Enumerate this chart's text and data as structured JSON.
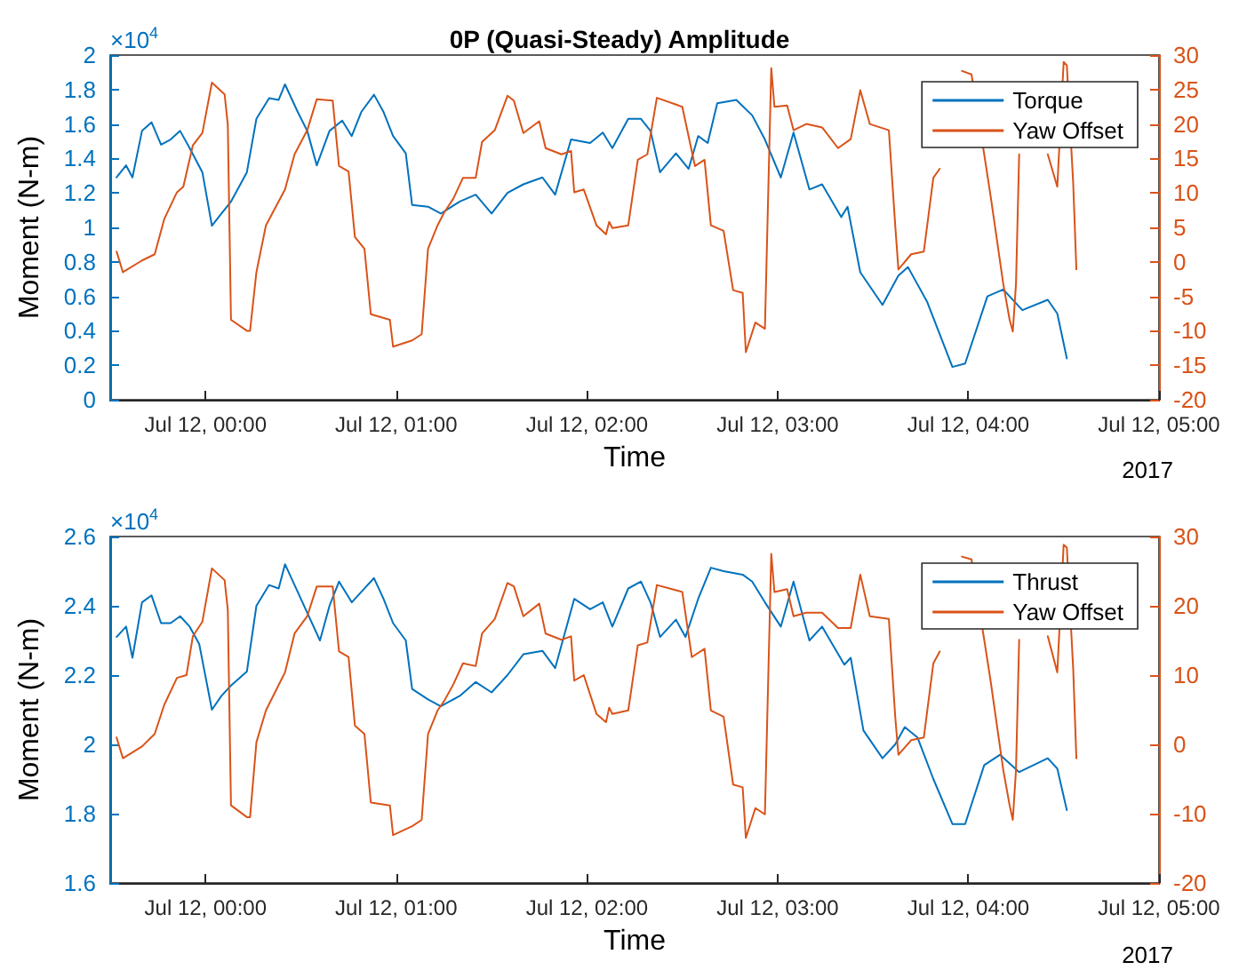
{
  "chart_data": [
    {
      "type": "line",
      "title": "0P (Quasi-Steady) Amplitude",
      "xlabel": "Time",
      "ylabel": "Moment (N-m)",
      "annotations": [
        "×10$^{4}$",
        "2017"
      ],
      "xlim": [
        "2017-07-11T23:30",
        "2017-07-12T05:00"
      ],
      "xticks": [
        {
          "value": "2017-07-12T00:00",
          "label": "Jul 12, 00:00"
        },
        {
          "value": "2017-07-12T01:00",
          "label": "Jul 12, 01:00"
        },
        {
          "value": "2017-07-12T02:00",
          "label": "Jul 12, 02:00"
        },
        {
          "value": "2017-07-12T03:00",
          "label": "Jul 12, 03:00"
        },
        {
          "value": "2017-07-12T04:00",
          "label": "Jul 12, 04:00"
        },
        {
          "value": "2017-07-12T05:00",
          "label": "Jul 12, 05:00"
        }
      ],
      "ylim": [
        0,
        2
      ],
      "yticks": [
        0,
        0.2,
        0.4,
        0.6,
        0.8,
        1,
        1.2,
        1.4,
        1.6,
        1.8,
        2
      ],
      "y2lim": [
        -20,
        30
      ],
      "y2ticks": [
        -20,
        -15,
        -10,
        -5,
        0,
        5,
        10,
        15,
        20,
        25,
        30
      ],
      "grid": false,
      "legend": "top right",
      "marker": "none",
      "line_style": "solid",
      "series": [
        {
          "name": "Torque",
          "color": "#0072bd",
          "x": [
            "2017-07-11T23:32",
            "2017-07-11T23:35",
            "2017-07-11T23:37",
            "2017-07-11T23:40",
            "2017-07-11T23:43",
            "2017-07-11T23:46",
            "2017-07-11T23:49",
            "2017-07-11T23:52",
            "2017-07-11T23:55",
            "2017-07-11T23:59",
            "2017-07-12T00:02",
            "2017-07-12T00:05",
            "2017-07-12T00:08",
            "2017-07-12T00:13",
            "2017-07-12T00:16",
            "2017-07-12T00:20",
            "2017-07-12T00:23",
            "2017-07-12T00:25",
            "2017-07-12T00:29",
            "2017-07-12T00:32",
            "2017-07-12T00:35",
            "2017-07-12T00:39",
            "2017-07-12T00:43",
            "2017-07-12T00:46",
            "2017-07-12T00:49",
            "2017-07-12T00:53",
            "2017-07-12T00:56",
            "2017-07-12T00:59",
            "2017-07-12T01:03",
            "2017-07-12T01:05",
            "2017-07-12T01:10",
            "2017-07-12T01:14",
            "2017-07-12T01:20",
            "2017-07-12T01:25",
            "2017-07-12T01:30",
            "2017-07-12T01:35",
            "2017-07-12T01:40",
            "2017-07-12T01:46",
            "2017-07-12T01:50",
            "2017-07-12T01:55",
            "2017-07-12T02:01",
            "2017-07-12T02:05",
            "2017-07-12T02:08",
            "2017-07-12T02:13",
            "2017-07-12T02:17",
            "2017-07-12T02:20",
            "2017-07-12T02:23",
            "2017-07-12T02:28",
            "2017-07-12T02:32",
            "2017-07-12T02:35",
            "2017-07-12T02:38",
            "2017-07-12T02:41",
            "2017-07-12T02:47",
            "2017-07-12T02:52",
            "2017-07-12T02:56",
            "2017-07-12T03:01",
            "2017-07-12T03:05",
            "2017-07-12T03:10",
            "2017-07-12T03:14",
            "2017-07-12T03:20",
            "2017-07-12T03:22",
            "2017-07-12T03:26",
            "2017-07-12T03:33",
            "2017-07-12T03:38",
            "2017-07-12T03:41",
            "2017-07-12T03:47",
            "2017-07-12T03:55",
            "2017-07-12T03:59",
            "2017-07-12T04:06",
            "2017-07-12T04:11",
            "2017-07-12T04:17",
            "2017-07-12T04:25",
            "2017-07-12T04:28",
            "2017-07-12T04:31"
          ],
          "values": [
            1.29,
            1.36,
            1.29,
            1.56,
            1.61,
            1.48,
            1.51,
            1.56,
            1.46,
            1.32,
            1.01,
            1.08,
            1.15,
            1.32,
            1.63,
            1.75,
            1.74,
            1.83,
            1.67,
            1.56,
            1.36,
            1.56,
            1.62,
            1.53,
            1.67,
            1.77,
            1.67,
            1.53,
            1.43,
            1.13,
            1.12,
            1.08,
            1.15,
            1.19,
            1.08,
            1.2,
            1.25,
            1.29,
            1.19,
            1.51,
            1.49,
            1.55,
            1.46,
            1.63,
            1.63,
            1.56,
            1.32,
            1.43,
            1.34,
            1.53,
            1.49,
            1.72,
            1.74,
            1.65,
            1.51,
            1.29,
            1.55,
            1.22,
            1.25,
            1.06,
            1.12,
            0.74,
            0.55,
            0.72,
            0.77,
            0.57,
            0.19,
            0.21,
            0.6,
            0.64,
            0.52,
            0.58,
            0.5,
            0.24
          ]
        },
        {
          "name": "Yaw Offset",
          "color": "#d95319",
          "axis": "y2",
          "x": [
            "2017-07-11T23:32",
            "2017-07-11T23:34",
            "2017-07-11T23:40",
            "2017-07-11T23:44",
            "2017-07-11T23:47",
            "2017-07-11T23:51",
            "2017-07-11T23:53",
            "2017-07-11T23:56",
            "2017-07-11T23:59",
            "2017-07-12T00:02",
            "2017-07-12T00:06",
            "2017-07-12T00:07",
            "2017-07-12T00:08",
            "2017-07-12T00:13",
            "2017-07-12T00:14",
            "2017-07-12T00:16",
            "2017-07-12T00:19",
            "2017-07-12T00:25",
            "2017-07-12T00:28",
            "2017-07-12T00:32",
            "2017-07-12T00:35",
            "2017-07-12T00:40",
            "2017-07-12T00:42",
            "2017-07-12T00:45",
            "2017-07-12T00:47",
            "2017-07-12T00:50",
            "2017-07-12T00:52",
            "2017-07-12T00:58",
            "2017-07-12T00:59",
            "2017-07-12T01:05",
            "2017-07-12T01:08",
            "2017-07-12T01:10",
            "2017-07-12T01:13",
            "2017-07-12T01:15",
            "2017-07-12T01:18",
            "2017-07-12T01:21",
            "2017-07-12T01:25",
            "2017-07-12T01:27",
            "2017-07-12T01:31",
            "2017-07-12T01:35",
            "2017-07-12T01:37",
            "2017-07-12T01:40",
            "2017-07-12T01:45",
            "2017-07-12T01:47",
            "2017-07-12T01:52",
            "2017-07-12T01:55",
            "2017-07-12T01:56",
            "2017-07-12T01:59",
            "2017-07-12T02:03",
            "2017-07-12T02:06",
            "2017-07-12T02:07",
            "2017-07-12T02:08",
            "2017-07-12T02:13",
            "2017-07-12T02:16",
            "2017-07-12T02:19",
            "2017-07-12T02:22",
            "2017-07-12T02:30",
            "2017-07-12T02:34",
            "2017-07-12T02:37",
            "2017-07-12T02:39",
            "2017-07-12T02:43",
            "2017-07-12T02:46",
            "2017-07-12T02:49",
            "2017-07-12T02:50",
            "2017-07-12T02:53",
            "2017-07-12T02:56",
            "2017-07-12T02:58",
            "2017-07-12T02:59",
            "2017-07-12T03:03",
            "2017-07-12T03:05",
            "2017-07-12T03:09",
            "2017-07-12T03:14",
            "2017-07-12T03:19",
            "2017-07-12T03:23",
            "2017-07-12T03:26",
            "2017-07-12T03:29",
            "2017-07-12T03:35",
            "2017-07-12T03:37",
            "2017-07-12T03:38",
            "2017-07-12T03:42",
            "2017-07-12T03:46",
            "2017-07-12T03:49",
            "2017-07-12T03:51",
            "2017-07-12T03:53",
            "2017-07-12T03:58",
            "2017-07-12T04:01",
            "2017-07-12T04:05",
            "2017-07-12T04:07",
            "2017-07-12T04:11",
            "2017-07-12T04:13",
            "2017-07-12T04:14",
            "2017-07-12T04:15",
            "2017-07-12T04:16",
            "2017-07-12T04:20",
            "2017-07-12T04:25",
            "2017-07-12T04:28",
            "2017-07-12T04:30",
            "2017-07-12T04:31",
            "2017-07-12T04:33",
            "2017-07-12T04:34"
          ],
          "values": [
            1.5,
            -1.5,
            0.2,
            1.1,
            6.2,
            10.1,
            10.9,
            16.9,
            18.7,
            26,
            24.3,
            19.9,
            -8.4,
            -10,
            -10,
            -1.5,
            5.3,
            10.5,
            15.6,
            19.1,
            23.6,
            23.4,
            13.9,
            13.1,
            3.6,
            1.9,
            -7.6,
            -8.4,
            -12.3,
            -11.4,
            -10.5,
            1.9,
            5.3,
            7.1,
            9.2,
            12.2,
            12.2,
            17.4,
            19.1,
            24.1,
            23.4,
            18.7,
            20.4,
            16.5,
            15.6,
            16.1,
            10.1,
            10.5,
            5.3,
            4,
            5.8,
            4.9,
            5.3,
            14.8,
            15.6,
            23.8,
            22.5,
            13.9,
            14.8,
            5.3,
            4.5,
            -4.1,
            -4.5,
            -13.1,
            -8.8,
            -9.7,
            28.1,
            22.5,
            22.7,
            19.1,
            20,
            19.5,
            16.5,
            17.8,
            24.9,
            20,
            19.1,
            5.3,
            -1.1,
            1.1,
            1.5,
            12.2,
            13.5,
            null,
            27.7,
            27.2,
            15.6,
            9.6,
            -3.2,
            -8.4,
            -10.1,
            -3.2,
            15.6,
            null,
            15.6,
            10.9,
            29,
            28.5,
            11.4,
            -1.1
          ]
        }
      ]
    },
    {
      "type": "line",
      "xlabel": "Time",
      "ylabel": "Moment (N-m)",
      "annotations": [
        "×10$^{4}$",
        "2017"
      ],
      "xlim": [
        "2017-07-11T23:30",
        "2017-07-12T05:00"
      ],
      "xticks": [
        {
          "value": "2017-07-12T00:00",
          "label": "Jul 12, 00:00"
        },
        {
          "value": "2017-07-12T01:00",
          "label": "Jul 12, 01:00"
        },
        {
          "value": "2017-07-12T02:00",
          "label": "Jul 12, 02:00"
        },
        {
          "value": "2017-07-12T03:00",
          "label": "Jul 12, 03:00"
        },
        {
          "value": "2017-07-12T04:00",
          "label": "Jul 12, 04:00"
        },
        {
          "value": "2017-07-12T05:00",
          "label": "Jul 12, 05:00"
        }
      ],
      "ylim": [
        1.6,
        2.6
      ],
      "yticks": [
        1.6,
        1.8,
        2,
        2.2,
        2.4,
        2.6
      ],
      "y2lim": [
        -20,
        30
      ],
      "y2ticks": [
        -20,
        -10,
        0,
        10,
        20,
        30
      ],
      "grid": false,
      "legend": "top right",
      "marker": "none",
      "line_style": "solid",
      "series": [
        {
          "name": "Thrust",
          "color": "#0072bd",
          "x": [
            "2017-07-11T23:32",
            "2017-07-11T23:35",
            "2017-07-11T23:37",
            "2017-07-11T23:40",
            "2017-07-11T23:43",
            "2017-07-11T23:46",
            "2017-07-11T23:49",
            "2017-07-11T23:52",
            "2017-07-11T23:55",
            "2017-07-11T23:58",
            "2017-07-12T00:02",
            "2017-07-12T00:05",
            "2017-07-12T00:08",
            "2017-07-12T00:13",
            "2017-07-12T00:16",
            "2017-07-12T00:20",
            "2017-07-12T00:23",
            "2017-07-12T00:25",
            "2017-07-12T00:29",
            "2017-07-12T00:32",
            "2017-07-12T00:36",
            "2017-07-12T00:39",
            "2017-07-12T00:42",
            "2017-07-12T00:46",
            "2017-07-12T00:49",
            "2017-07-12T00:53",
            "2017-07-12T00:56",
            "2017-07-12T00:59",
            "2017-07-12T01:03",
            "2017-07-12T01:05",
            "2017-07-12T01:10",
            "2017-07-12T01:14",
            "2017-07-12T01:20",
            "2017-07-12T01:25",
            "2017-07-12T01:30",
            "2017-07-12T01:35",
            "2017-07-12T01:40",
            "2017-07-12T01:46",
            "2017-07-12T01:50",
            "2017-07-12T01:56",
            "2017-07-12T02:01",
            "2017-07-12T02:05",
            "2017-07-12T02:08",
            "2017-07-12T02:13",
            "2017-07-12T02:17",
            "2017-07-12T02:20",
            "2017-07-12T02:23",
            "2017-07-12T02:28",
            "2017-07-12T02:31",
            "2017-07-12T02:35",
            "2017-07-12T02:39",
            "2017-07-12T02:43",
            "2017-07-12T02:49",
            "2017-07-12T02:52",
            "2017-07-12T02:56",
            "2017-07-12T03:01",
            "2017-07-12T03:05",
            "2017-07-12T03:10",
            "2017-07-12T03:14",
            "2017-07-12T03:21",
            "2017-07-12T03:23",
            "2017-07-12T03:27",
            "2017-07-12T03:33",
            "2017-07-12T03:37",
            "2017-07-12T03:40",
            "2017-07-12T03:44",
            "2017-07-12T03:49",
            "2017-07-12T03:55",
            "2017-07-12T03:59",
            "2017-07-12T04:05",
            "2017-07-12T04:10",
            "2017-07-12T04:16",
            "2017-07-12T04:25",
            "2017-07-12T04:28",
            "2017-07-12T04:31"
          ],
          "values": [
            2.31,
            2.34,
            2.25,
            2.41,
            2.43,
            2.35,
            2.35,
            2.37,
            2.34,
            2.29,
            2.1,
            2.14,
            2.17,
            2.21,
            2.4,
            2.46,
            2.45,
            2.52,
            2.44,
            2.38,
            2.3,
            2.4,
            2.47,
            2.41,
            2.44,
            2.48,
            2.42,
            2.35,
            2.3,
            2.16,
            2.13,
            2.11,
            2.14,
            2.18,
            2.15,
            2.2,
            2.26,
            2.27,
            2.22,
            2.42,
            2.39,
            2.41,
            2.34,
            2.45,
            2.47,
            2.41,
            2.31,
            2.36,
            2.31,
            2.42,
            2.51,
            2.5,
            2.49,
            2.47,
            2.41,
            2.34,
            2.47,
            2.3,
            2.34,
            2.23,
            2.25,
            2.04,
            1.96,
            2,
            2.05,
            2.02,
            1.9,
            1.77,
            1.77,
            1.94,
            1.97,
            1.92,
            1.96,
            1.93,
            1.81
          ]
        },
        {
          "name": "Yaw Offset",
          "color": "#d95319",
          "axis": "y2",
          "x": [
            "2017-07-11T23:32",
            "2017-07-11T23:34",
            "2017-07-11T23:40",
            "2017-07-11T23:44",
            "2017-07-11T23:47",
            "2017-07-11T23:51",
            "2017-07-11T23:54",
            "2017-07-11T23:56",
            "2017-07-11T23:59",
            "2017-07-12T00:02",
            "2017-07-12T00:06",
            "2017-07-12T00:07",
            "2017-07-12T00:08",
            "2017-07-12T00:13",
            "2017-07-12T00:14",
            "2017-07-12T00:16",
            "2017-07-12T00:19",
            "2017-07-12T00:25",
            "2017-07-12T00:28",
            "2017-07-12T00:32",
            "2017-07-12T00:35",
            "2017-07-12T00:40",
            "2017-07-12T00:42",
            "2017-07-12T00:45",
            "2017-07-12T00:47",
            "2017-07-12T00:50",
            "2017-07-12T00:52",
            "2017-07-12T00:58",
            "2017-07-12T00:59",
            "2017-07-12T01:05",
            "2017-07-12T01:08",
            "2017-07-12T01:10",
            "2017-07-12T01:13",
            "2017-07-12T01:15",
            "2017-07-12T01:18",
            "2017-07-12T01:21",
            "2017-07-12T01:25",
            "2017-07-12T01:27",
            "2017-07-12T01:31",
            "2017-07-12T01:35",
            "2017-07-12T01:37",
            "2017-07-12T01:40",
            "2017-07-12T01:45",
            "2017-07-12T01:47",
            "2017-07-12T01:52",
            "2017-07-12T01:55",
            "2017-07-12T01:56",
            "2017-07-12T01:59",
            "2017-07-12T02:03",
            "2017-07-12T02:06",
            "2017-07-12T02:07",
            "2017-07-12T02:08",
            "2017-07-12T02:13",
            "2017-07-12T02:16",
            "2017-07-12T02:19",
            "2017-07-12T02:22",
            "2017-07-12T02:30",
            "2017-07-12T02:33",
            "2017-07-12T02:37",
            "2017-07-12T02:39",
            "2017-07-12T02:43",
            "2017-07-12T02:46",
            "2017-07-12T02:49",
            "2017-07-12T02:50",
            "2017-07-12T02:53",
            "2017-07-12T02:56",
            "2017-07-12T02:58",
            "2017-07-12T02:59",
            "2017-07-12T03:03",
            "2017-07-12T03:05",
            "2017-07-12T03:09",
            "2017-07-12T03:14",
            "2017-07-12T03:19",
            "2017-07-12T03:23",
            "2017-07-12T03:26",
            "2017-07-12T03:29",
            "2017-07-12T03:35",
            "2017-07-12T03:37",
            "2017-07-12T03:38",
            "2017-07-12T03:42",
            "2017-07-12T03:46",
            "2017-07-12T03:49",
            "2017-07-12T03:51",
            "2017-07-12T03:53",
            "2017-07-12T03:58",
            "2017-07-12T04:01",
            "2017-07-12T04:05",
            "2017-07-12T04:07",
            "2017-07-12T04:11",
            "2017-07-12T04:13",
            "2017-07-12T04:14",
            "2017-07-12T04:15",
            "2017-07-12T04:16",
            "2017-07-12T04:20",
            "2017-07-12T04:25",
            "2017-07-12T04:28",
            "2017-07-12T04:30",
            "2017-07-12T04:31",
            "2017-07-12T04:33",
            "2017-07-12T04:34"
          ],
          "values": [
            1,
            -2,
            -0.3,
            1.5,
            5.7,
            9.6,
            10,
            15.6,
            17.7,
            25.4,
            23.7,
            19.4,
            -8.8,
            -10.5,
            -10.5,
            0.3,
            4.9,
            10.4,
            16,
            18.5,
            22.8,
            22.8,
            13.4,
            12.6,
            2.7,
            1.5,
            -8.4,
            -8.8,
            -13.1,
            -11.8,
            -10.9,
            1.5,
            4.9,
            6.2,
            8.7,
            11.7,
            11.3,
            16,
            18.1,
            23.3,
            22.8,
            18.5,
            20.3,
            16,
            15.1,
            15.6,
            9.2,
            10,
            4.4,
            3.2,
            5.3,
            4.4,
            4.9,
            14.3,
            14.7,
            23,
            22,
            12.6,
            13.8,
            4.9,
            4,
            -5.8,
            -6.2,
            -13.5,
            -9.2,
            -10.1,
            27.5,
            22,
            22.4,
            18.5,
            19,
            19,
            16.8,
            16.8,
            24.5,
            18.5,
            18.1,
            4,
            -1.5,
            0.6,
            1,
            11.7,
            13.4,
            null,
            27.1,
            26.7,
            15.1,
            9.2,
            -3.7,
            -8.8,
            -10.9,
            -3.7,
            15.1,
            null,
            15.6,
            10.4,
            28.8,
            28.4,
            10.9,
            -2
          ]
        }
      ]
    }
  ]
}
